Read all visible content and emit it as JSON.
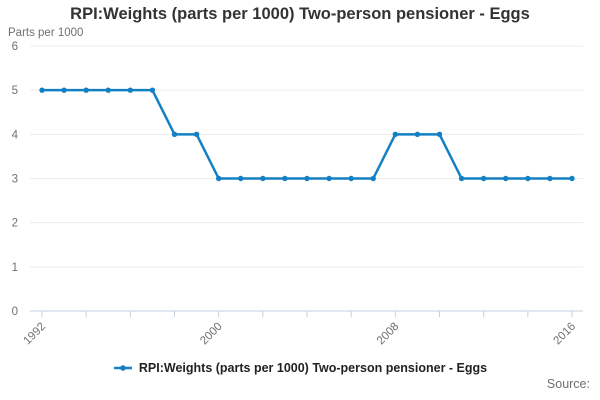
{
  "chart": {
    "title": "RPI:Weights (parts per 1000) Two-person pensioner - Eggs",
    "y_unit_label": "Parts per 1000",
    "legend_label": "RPI:Weights (parts per 1000) Two-person pensioner - Eggs",
    "source_label": "Source:",
    "line_color": "#1380c4",
    "grid_color": "#ececec",
    "axis_color": "#c3d2e0",
    "tick_label_color": "#707070"
  },
  "chart_data": {
    "type": "line",
    "title": "RPI:Weights (parts per 1000) Two-person pensioner - Eggs",
    "ylabel": "Parts per 1000",
    "xlabel": "",
    "legend_entries": [
      "RPI:Weights (parts per 1000) Two-person pensioner - Eggs"
    ],
    "legend_position": "bottom",
    "grid": "horizontal",
    "ylim": [
      0,
      6
    ],
    "y_ticks": [
      0,
      1,
      2,
      3,
      4,
      5,
      6
    ],
    "x_tick_step": 2,
    "x_labeled_ticks": [
      1992,
      2000,
      2008,
      2016
    ],
    "x": [
      1992,
      1993,
      1994,
      1995,
      1996,
      1997,
      1998,
      1999,
      2000,
      2001,
      2002,
      2003,
      2004,
      2005,
      2006,
      2007,
      2008,
      2009,
      2010,
      2011,
      2012,
      2013,
      2014,
      2015,
      2016
    ],
    "series": [
      {
        "name": "RPI:Weights (parts per 1000) Two-person pensioner - Eggs",
        "values": [
          5,
          5,
          5,
          5,
          5,
          5,
          4,
          4,
          3,
          3,
          3,
          3,
          3,
          3,
          3,
          3,
          4,
          4,
          4,
          3,
          3,
          3,
          3,
          3,
          3
        ]
      }
    ]
  }
}
